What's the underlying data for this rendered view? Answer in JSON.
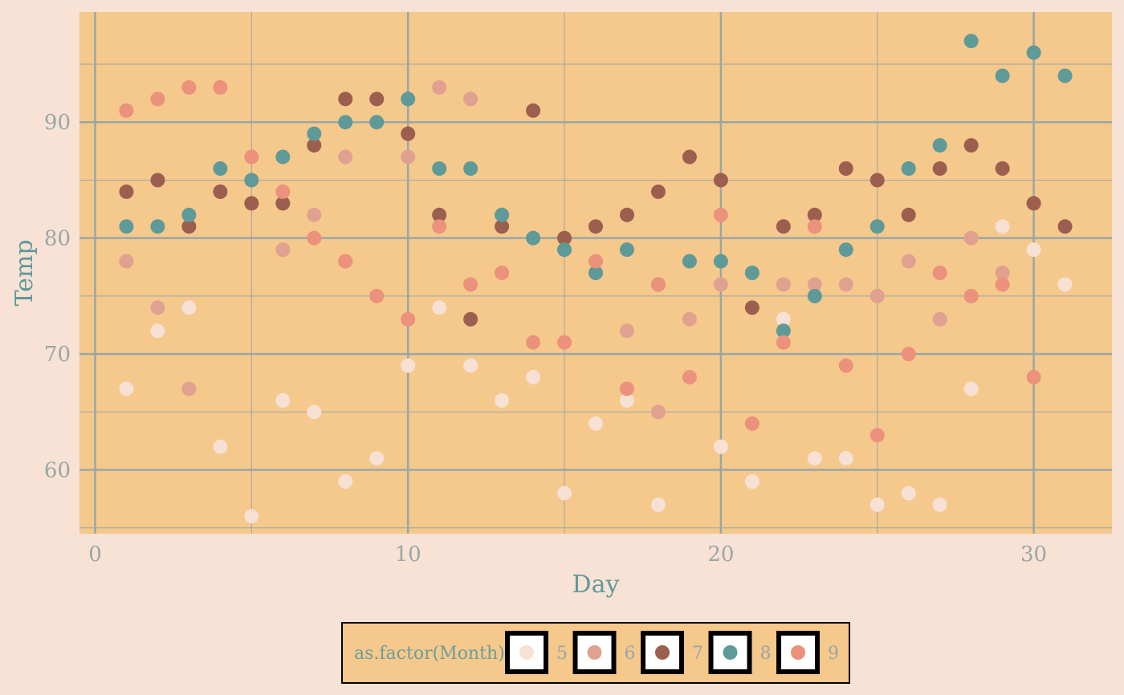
{
  "chart_data": {
    "type": "scatter",
    "title": "",
    "xlabel": "Day",
    "ylabel": "Temp",
    "xlim": [
      -0.5,
      32.5
    ],
    "ylim": [
      54.5,
      99.5
    ],
    "x_ticks": [
      0,
      10,
      20,
      30
    ],
    "y_ticks": [
      60,
      70,
      80,
      90
    ],
    "grid": true,
    "legend": {
      "title": "as.factor(Month)",
      "position": "bottom"
    },
    "colors": {
      "panel_bg": "#f5c88c",
      "page_bg": "#f7e2d5",
      "grid": "#9aa6a6"
    },
    "series": [
      {
        "name": "5",
        "color": "#f7e0d4",
        "x": [
          1,
          2,
          3,
          4,
          5,
          6,
          7,
          8,
          9,
          10,
          11,
          12,
          13,
          14,
          15,
          16,
          17,
          18,
          19,
          20,
          21,
          22,
          23,
          24,
          25,
          26,
          27,
          28,
          29,
          30,
          31
        ],
        "y": [
          67,
          72,
          74,
          62,
          56,
          66,
          65,
          59,
          61,
          69,
          74,
          69,
          66,
          68,
          58,
          64,
          66,
          57,
          68,
          62,
          59,
          73,
          61,
          61,
          57,
          58,
          57,
          67,
          81,
          79,
          76
        ]
      },
      {
        "name": "6",
        "color": "#e0a191",
        "x": [
          1,
          2,
          3,
          4,
          5,
          6,
          7,
          8,
          9,
          10,
          11,
          12,
          13,
          14,
          15,
          16,
          17,
          18,
          19,
          20,
          21,
          22,
          23,
          24,
          25,
          26,
          27,
          28,
          29,
          30
        ],
        "y": [
          78,
          74,
          67,
          84,
          85,
          79,
          82,
          87,
          90,
          87,
          93,
          92,
          82,
          80,
          79,
          77,
          72,
          65,
          73,
          76,
          77,
          76,
          76,
          76,
          75,
          78,
          73,
          80,
          77,
          83
        ]
      },
      {
        "name": "7",
        "color": "#9c5e4e",
        "x": [
          1,
          2,
          3,
          4,
          5,
          6,
          7,
          8,
          9,
          10,
          11,
          12,
          13,
          14,
          15,
          16,
          17,
          18,
          19,
          20,
          21,
          22,
          23,
          24,
          25,
          26,
          27,
          28,
          29,
          30,
          31
        ],
        "y": [
          84,
          85,
          81,
          84,
          83,
          83,
          88,
          92,
          92,
          89,
          82,
          73,
          81,
          91,
          80,
          81,
          82,
          84,
          87,
          85,
          74,
          81,
          82,
          86,
          85,
          82,
          86,
          88,
          86,
          83,
          81
        ]
      },
      {
        "name": "8",
        "color": "#5e9a98",
        "x": [
          1,
          2,
          3,
          4,
          5,
          6,
          7,
          8,
          9,
          10,
          11,
          12,
          13,
          14,
          15,
          16,
          17,
          18,
          19,
          20,
          21,
          22,
          23,
          24,
          25,
          26,
          27,
          28,
          29,
          30,
          31
        ],
        "y": [
          81,
          81,
          82,
          86,
          85,
          87,
          89,
          90,
          90,
          92,
          86,
          86,
          82,
          80,
          79,
          77,
          79,
          76,
          78,
          78,
          77,
          72,
          75,
          79,
          81,
          86,
          88,
          97,
          94,
          96,
          94
        ]
      },
      {
        "name": "9",
        "color": "#ec917b",
        "x": [
          1,
          2,
          3,
          4,
          5,
          6,
          7,
          8,
          9,
          10,
          11,
          12,
          13,
          14,
          15,
          16,
          17,
          18,
          19,
          20,
          21,
          22,
          23,
          24,
          25,
          26,
          27,
          28,
          29,
          30
        ],
        "y": [
          91,
          92,
          93,
          93,
          87,
          84,
          80,
          78,
          75,
          73,
          81,
          76,
          77,
          71,
          71,
          78,
          67,
          76,
          68,
          82,
          64,
          71,
          81,
          69,
          63,
          70,
          77,
          75,
          76,
          68
        ]
      }
    ]
  }
}
